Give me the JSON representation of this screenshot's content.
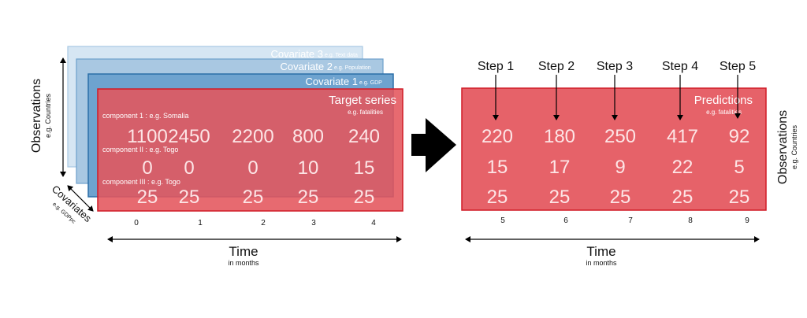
{
  "left_panel": {
    "covariate_3": {
      "label": "Covariate 3",
      "example": "e.g. Text data"
    },
    "covariate_2": {
      "label": "Covariate 2",
      "example": "e.g. Population"
    },
    "covariate_1": {
      "label": "Covariate 1",
      "example": "e.g. GDP"
    },
    "target": {
      "title": "Target series",
      "subtitle": "e.g. fatalities",
      "components": [
        {
          "label": "component 1 : e.g. Somalia",
          "values": [
            "1100",
            "2450",
            "2200",
            "800",
            "240"
          ]
        },
        {
          "label": "component II : e.g. Togo",
          "values": [
            "0",
            "0",
            "0",
            "10",
            "15"
          ]
        },
        {
          "label": "component III : e.g. Togo",
          "values": [
            "25",
            "25",
            "25",
            "25",
            "25"
          ]
        }
      ]
    },
    "observations_label": "Observations",
    "observations_sub": "e.g. Countries",
    "covariates_label": "Covariates",
    "covariates_sub": "e.g. GDPpc",
    "time_ticks": [
      "0",
      "1",
      "2",
      "3",
      "4"
    ],
    "time_label": "Time",
    "time_sub": "in months"
  },
  "right_panel": {
    "steps": [
      "Step 1",
      "Step 2",
      "Step 3",
      "Step 4",
      "Step 5"
    ],
    "title": "Predictions",
    "subtitle": "e.g. fatalities",
    "rows": [
      [
        "220",
        "180",
        "250",
        "417",
        "92"
      ],
      [
        "15",
        "17",
        "9",
        "22",
        "5"
      ],
      [
        "25",
        "25",
        "25",
        "25",
        "25"
      ]
    ],
    "time_ticks": [
      "5",
      "6",
      "7",
      "8",
      "9"
    ],
    "time_label": "Time",
    "time_sub": "in months",
    "observations_label": "Observations",
    "observations_sub": "e.g. Countries"
  },
  "colors": {
    "covariate_3": "#d6e6f3",
    "covariate_2": "#a9c8e2",
    "covariate_1": "#6ea3cf",
    "target": "#e4555c",
    "prediction": "#e4555c",
    "arrow": "#000000"
  }
}
